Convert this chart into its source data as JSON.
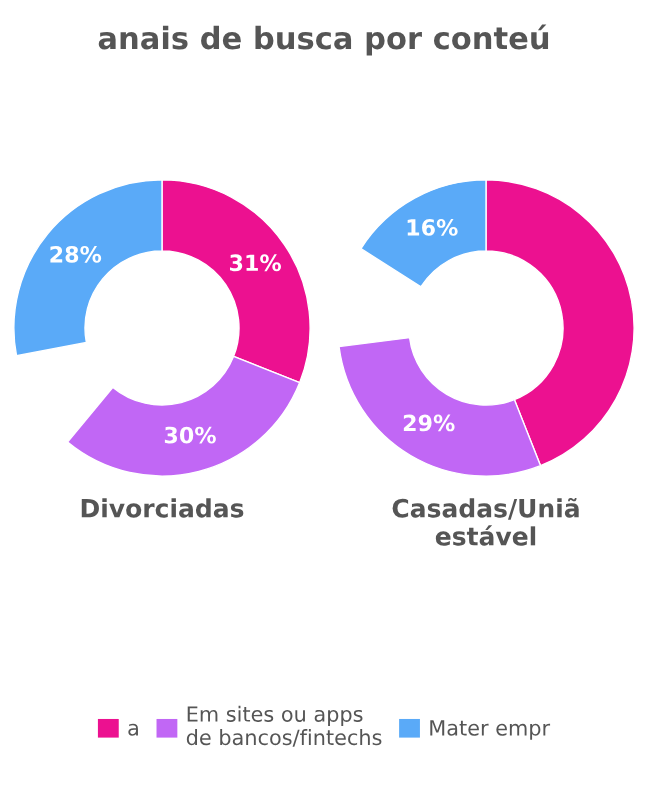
{
  "chart_data": [
    {
      "type": "donut",
      "title": "anais de busca por conteú",
      "xlabel": "Divorciadas",
      "categories": [
        "a",
        "Em sites ou apps de bancos/fintechs",
        null,
        "Mater empr"
      ],
      "values": [
        31,
        30,
        null,
        28
      ],
      "colors": [
        "#ec1190",
        "#c167f5",
        null,
        "#5aaaf8"
      ],
      "value_labels": [
        "31%",
        "30%",
        null,
        "28%"
      ],
      "legend": "bottom"
    },
    {
      "type": "donut",
      "xlabel": "Casadas/Uniã estável",
      "categories": [
        null,
        null,
        null,
        null
      ],
      "values": [
        44,
        29,
        null,
        16
      ],
      "colors": [
        "#ec1190",
        "#c167f5",
        null,
        "#5aaaf8"
      ],
      "value_labels": [
        null,
        "29%",
        null,
        "16%"
      ]
    }
  ]
}
